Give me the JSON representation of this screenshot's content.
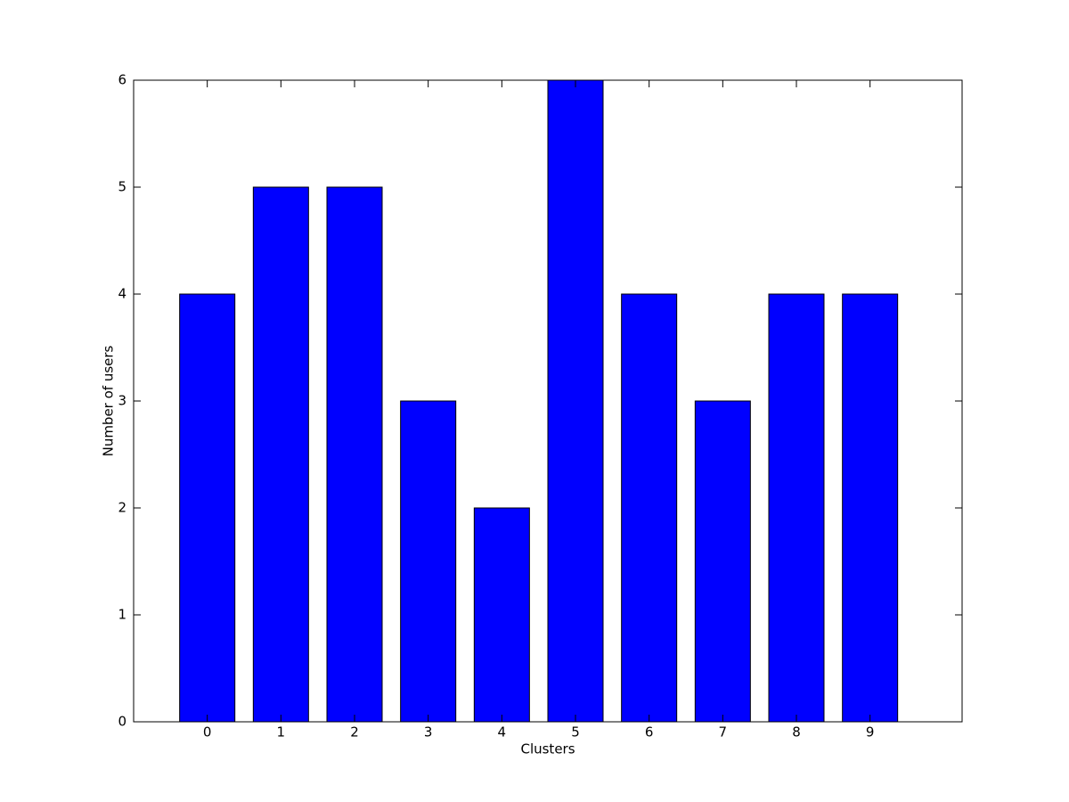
{
  "chart_data": {
    "type": "bar",
    "x_label": "Clusters",
    "y_label": "Number of users",
    "x": [
      0,
      1,
      2,
      3,
      4,
      5,
      6,
      7,
      8,
      9
    ],
    "values": [
      4,
      5,
      5,
      3,
      2,
      6,
      4,
      3,
      4,
      4
    ],
    "color": "#0000ff",
    "xlim": [
      -1,
      10.25
    ],
    "xticks": [
      0,
      1,
      2,
      3,
      4,
      5,
      6,
      7,
      8,
      9
    ],
    "ylim": [
      0,
      6
    ],
    "yticks": [
      0,
      1,
      2,
      3,
      4,
      5,
      6
    ],
    "grid": false
  }
}
